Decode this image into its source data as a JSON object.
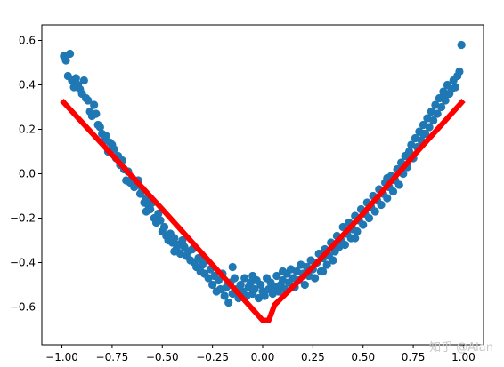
{
  "chart_data": {
    "type": "scatter",
    "title": "",
    "xlabel": "",
    "ylabel": "",
    "xlim": [
      -1.1,
      1.1
    ],
    "ylim": [
      -0.77,
      0.67
    ],
    "xticks": [
      -1.0,
      -0.75,
      -0.5,
      -0.25,
      0.0,
      0.25,
      0.5,
      0.75,
      1.0
    ],
    "xtick_labels": [
      "−1.00",
      "−0.75",
      "−0.50",
      "−0.25",
      "0.00",
      "0.25",
      "0.50",
      "0.75",
      "1.00"
    ],
    "yticks": [
      -0.6,
      -0.4,
      -0.2,
      0.0,
      0.2,
      0.4,
      0.6
    ],
    "ytick_labels": [
      "−0.6",
      "−0.4",
      "−0.2",
      "0.0",
      "0.2",
      "0.4",
      "0.6"
    ],
    "grid": false,
    "legend": false,
    "series": [
      {
        "kind": "scatter",
        "color": "#1f77b4",
        "points": [
          [
            -0.99,
            0.53
          ],
          [
            -0.98,
            0.51
          ],
          [
            -0.96,
            0.54
          ],
          [
            -0.97,
            0.44
          ],
          [
            -0.95,
            0.42
          ],
          [
            -0.93,
            0.43
          ],
          [
            -0.92,
            0.4
          ],
          [
            -0.91,
            0.38
          ],
          [
            -0.9,
            0.36
          ],
          [
            -0.89,
            0.42
          ],
          [
            -0.88,
            0.34
          ],
          [
            -0.87,
            0.33
          ],
          [
            -0.86,
            0.28
          ],
          [
            -0.85,
            0.26
          ],
          [
            -0.83,
            0.27
          ],
          [
            -0.82,
            0.22
          ],
          [
            -0.81,
            0.21
          ],
          [
            -0.8,
            0.18
          ],
          [
            -0.79,
            0.15
          ],
          [
            -0.78,
            0.17
          ],
          [
            -0.76,
            0.14
          ],
          [
            -0.75,
            0.13
          ],
          [
            -0.74,
            0.11
          ],
          [
            -0.73,
            0.07
          ],
          [
            -0.72,
            0.08
          ],
          [
            -0.71,
            0.04
          ],
          [
            -0.7,
            0.06
          ],
          [
            -0.69,
            0.02
          ],
          [
            -0.68,
            -0.03
          ],
          [
            -0.67,
            0.01
          ],
          [
            -0.66,
            -0.04
          ],
          [
            -0.65,
            -0.02
          ],
          [
            -0.64,
            -0.06
          ],
          [
            -0.63,
            -0.05
          ],
          [
            -0.62,
            -0.03
          ],
          [
            -0.61,
            -0.09
          ],
          [
            -0.6,
            -0.07
          ],
          [
            -0.59,
            -0.13
          ],
          [
            -0.58,
            -0.11
          ],
          [
            -0.57,
            -0.14
          ],
          [
            -0.56,
            -0.16
          ],
          [
            -0.55,
            -0.13
          ],
          [
            -0.54,
            -0.2
          ],
          [
            -0.53,
            -0.22
          ],
          [
            -0.52,
            -0.18
          ],
          [
            -0.51,
            -0.21
          ],
          [
            -0.5,
            -0.26
          ],
          [
            -0.49,
            -0.24
          ],
          [
            -0.48,
            -0.28
          ],
          [
            -0.47,
            -0.3
          ],
          [
            -0.46,
            -0.27
          ],
          [
            -0.45,
            -0.31
          ],
          [
            -0.44,
            -0.29
          ],
          [
            -0.43,
            -0.34
          ],
          [
            -0.42,
            -0.32
          ],
          [
            -0.41,
            -0.36
          ],
          [
            -0.4,
            -0.3
          ],
          [
            -0.39,
            -0.33
          ],
          [
            -0.38,
            -0.37
          ],
          [
            -0.37,
            -0.35
          ],
          [
            -0.36,
            -0.39
          ],
          [
            -0.35,
            -0.34
          ],
          [
            -0.34,
            -0.4
          ],
          [
            -0.33,
            -0.42
          ],
          [
            -0.32,
            -0.38
          ],
          [
            -0.31,
            -0.44
          ],
          [
            -0.3,
            -0.41
          ],
          [
            -0.29,
            -0.45
          ],
          [
            -0.28,
            -0.39
          ],
          [
            -0.27,
            -0.47
          ],
          [
            -0.26,
            -0.43
          ],
          [
            -0.25,
            -0.5
          ],
          [
            -0.24,
            -0.46
          ],
          [
            -0.23,
            -0.53
          ],
          [
            -0.22,
            -0.48
          ],
          [
            -0.21,
            -0.52
          ],
          [
            -0.2,
            -0.45
          ],
          [
            -0.19,
            -0.55
          ],
          [
            -0.18,
            -0.51
          ],
          [
            -0.17,
            -0.58
          ],
          [
            -0.16,
            -0.49
          ],
          [
            -0.15,
            -0.54
          ],
          [
            -0.14,
            -0.47
          ],
          [
            -0.13,
            -0.52
          ],
          [
            -0.12,
            -0.56
          ],
          [
            -0.11,
            -0.5
          ],
          [
            -0.1,
            -0.53
          ],
          [
            -0.09,
            -0.47
          ],
          [
            -0.08,
            -0.55
          ],
          [
            -0.07,
            -0.51
          ],
          [
            -0.06,
            -0.49
          ],
          [
            -0.05,
            -0.54
          ],
          [
            -0.04,
            -0.52
          ],
          [
            -0.03,
            -0.48
          ],
          [
            -0.02,
            -0.56
          ],
          [
            -0.01,
            -0.5
          ],
          [
            0.0,
            -0.53
          ],
          [
            0.01,
            -0.55
          ],
          [
            0.02,
            -0.47
          ],
          [
            0.03,
            -0.52
          ],
          [
            0.04,
            -0.49
          ],
          [
            0.05,
            -0.54
          ],
          [
            0.06,
            -0.51
          ],
          [
            0.07,
            -0.46
          ],
          [
            0.08,
            -0.53
          ],
          [
            0.09,
            -0.5
          ],
          [
            0.1,
            -0.48
          ],
          [
            0.11,
            -0.52
          ],
          [
            0.12,
            -0.45
          ],
          [
            0.13,
            -0.49
          ],
          [
            0.14,
            -0.43
          ],
          [
            0.15,
            -0.47
          ],
          [
            0.16,
            -0.51
          ],
          [
            0.17,
            -0.44
          ],
          [
            0.18,
            -0.48
          ],
          [
            0.19,
            -0.41
          ],
          [
            0.2,
            -0.45
          ],
          [
            0.21,
            -0.5
          ],
          [
            0.22,
            -0.42
          ],
          [
            0.23,
            -0.46
          ],
          [
            0.24,
            -0.39
          ],
          [
            0.25,
            -0.43
          ],
          [
            0.26,
            -0.47
          ],
          [
            0.27,
            -0.4
          ],
          [
            0.28,
            -0.36
          ],
          [
            0.29,
            -0.44
          ],
          [
            0.3,
            -0.38
          ],
          [
            0.31,
            -0.34
          ],
          [
            0.32,
            -0.41
          ],
          [
            0.33,
            -0.37
          ],
          [
            0.34,
            -0.31
          ],
          [
            0.35,
            -0.39
          ],
          [
            0.36,
            -0.35
          ],
          [
            0.37,
            -0.28
          ],
          [
            0.38,
            -0.33
          ],
          [
            0.39,
            -0.3
          ],
          [
            0.4,
            -0.24
          ],
          [
            0.41,
            -0.32
          ],
          [
            0.42,
            -0.27
          ],
          [
            0.43,
            -0.22
          ],
          [
            0.44,
            -0.29
          ],
          [
            0.45,
            -0.25
          ],
          [
            0.46,
            -0.19
          ],
          [
            0.47,
            -0.26
          ],
          [
            0.48,
            -0.21
          ],
          [
            0.49,
            -0.16
          ],
          [
            0.5,
            -0.23
          ],
          [
            0.51,
            -0.18
          ],
          [
            0.52,
            -0.13
          ],
          [
            0.53,
            -0.2
          ],
          [
            0.54,
            -0.15
          ],
          [
            0.55,
            -0.1
          ],
          [
            0.56,
            -0.17
          ],
          [
            0.57,
            -0.12
          ],
          [
            0.58,
            -0.07
          ],
          [
            0.59,
            -0.14
          ],
          [
            0.6,
            -0.09
          ],
          [
            0.61,
            -0.04
          ],
          [
            0.62,
            -0.11
          ],
          [
            0.63,
            -0.06
          ],
          [
            0.64,
            -0.01
          ],
          [
            0.65,
            -0.08
          ],
          [
            0.66,
            -0.03
          ],
          [
            0.67,
            0.02
          ],
          [
            0.68,
            -0.05
          ],
          [
            0.69,
            0.05
          ],
          [
            0.7,
            0.0
          ],
          [
            0.71,
            0.08
          ],
          [
            0.72,
            0.03
          ],
          [
            0.73,
            0.1
          ],
          [
            0.74,
            0.13
          ],
          [
            0.75,
            0.07
          ],
          [
            0.76,
            0.16
          ],
          [
            0.77,
            0.12
          ],
          [
            0.78,
            0.19
          ],
          [
            0.79,
            0.15
          ],
          [
            0.8,
            0.22
          ],
          [
            0.81,
            0.18
          ],
          [
            0.82,
            0.25
          ],
          [
            0.83,
            0.21
          ],
          [
            0.84,
            0.28
          ],
          [
            0.85,
            0.24
          ],
          [
            0.86,
            0.31
          ],
          [
            0.87,
            0.27
          ],
          [
            0.88,
            0.34
          ],
          [
            0.89,
            0.3
          ],
          [
            0.9,
            0.37
          ],
          [
            0.91,
            0.33
          ],
          [
            0.92,
            0.4
          ],
          [
            0.93,
            0.36
          ],
          [
            0.94,
            0.38
          ],
          [
            0.95,
            0.42
          ],
          [
            0.96,
            0.39
          ],
          [
            0.97,
            0.44
          ],
          [
            0.98,
            0.46
          ],
          [
            0.99,
            0.58
          ],
          [
            -0.94,
            0.39
          ],
          [
            -0.84,
            0.31
          ],
          [
            -0.77,
            0.1
          ],
          [
            -0.58,
            -0.17
          ],
          [
            -0.44,
            -0.35
          ],
          [
            -0.3,
            -0.38
          ],
          [
            0.3,
            -0.44
          ],
          [
            0.46,
            -0.29
          ],
          [
            0.62,
            -0.02
          ],
          [
            0.8,
            0.18
          ],
          [
            0.9,
            0.35
          ],
          [
            -0.15,
            -0.42
          ],
          [
            0.1,
            -0.44
          ],
          [
            -0.05,
            -0.46
          ]
        ]
      },
      {
        "kind": "line",
        "color": "#ff0000",
        "points": [
          [
            -1.0,
            0.33
          ],
          [
            -0.5,
            -0.16
          ],
          [
            -0.25,
            -0.41
          ],
          [
            0.0,
            -0.66
          ],
          [
            0.03,
            -0.66
          ],
          [
            0.06,
            -0.59
          ],
          [
            0.25,
            -0.42
          ],
          [
            0.5,
            -0.18
          ],
          [
            0.75,
            0.08
          ],
          [
            1.0,
            0.33
          ]
        ]
      }
    ]
  },
  "watermark": "知乎 @Alan"
}
